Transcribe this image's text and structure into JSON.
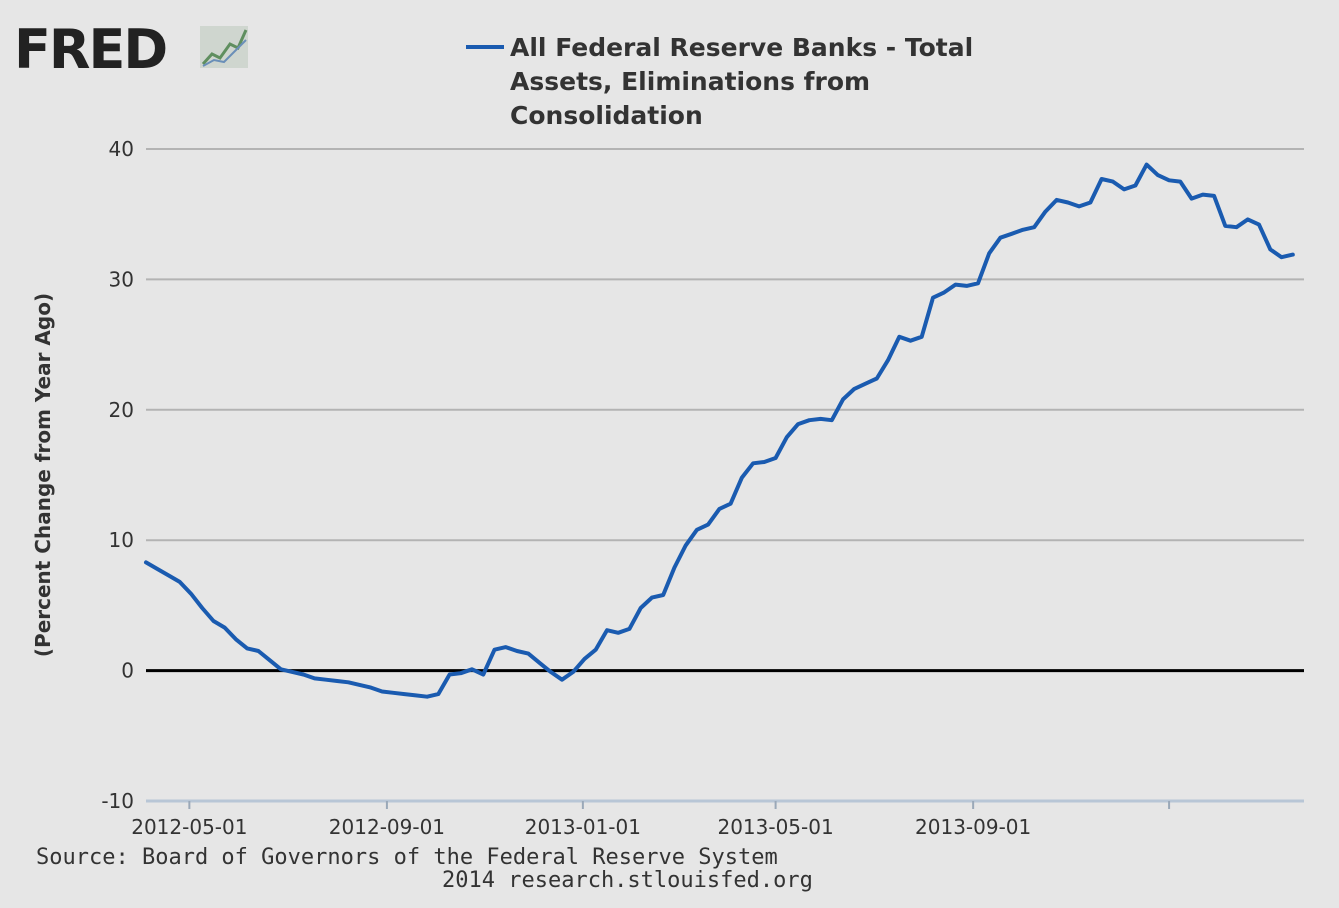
{
  "logo": {
    "text": "FRED"
  },
  "chart_data": {
    "type": "line",
    "series": [
      {
        "name": "All Federal Reserve Banks - Total Assets, Eliminations from Consolidation",
        "legend_lines": [
          "All Federal Reserve Banks - Total",
          "Assets, Eliminations from",
          "Consolidation"
        ],
        "color": "#1a5bb0",
        "start_date": "2012-04-04",
        "interval_days": 7,
        "values": [
          8.3,
          7.8,
          7.3,
          6.8,
          5.9,
          4.8,
          3.8,
          3.3,
          2.4,
          1.7,
          1.5,
          0.8,
          0.1,
          -0.1,
          -0.3,
          -0.6,
          -0.7,
          -0.8,
          -0.9,
          -1.1,
          -1.3,
          -1.6,
          -1.7,
          -1.8,
          -1.9,
          -2.0,
          -1.8,
          -0.3,
          -0.2,
          0.1,
          -0.3,
          1.6,
          1.8,
          1.5,
          1.3,
          0.6,
          -0.1,
          -0.7,
          -0.1,
          0.9,
          1.6,
          3.1,
          2.9,
          3.2,
          4.8,
          5.6,
          5.8,
          7.9,
          9.6,
          10.8,
          11.2,
          12.4,
          12.8,
          14.8,
          15.9,
          16.0,
          16.3,
          17.9,
          18.9,
          19.2,
          19.3,
          19.2,
          20.8,
          21.6,
          22.0,
          22.4,
          23.8,
          25.6,
          25.3,
          25.6,
          28.6,
          29.0,
          29.6,
          29.5,
          29.7,
          32.0,
          33.2,
          33.5,
          33.8,
          34.0,
          35.2,
          36.1,
          35.9,
          35.6,
          35.9,
          37.7,
          37.5,
          36.9,
          37.2,
          38.8,
          38.0,
          37.6,
          37.5,
          36.2,
          36.5,
          36.4,
          34.1,
          34.0,
          34.6,
          34.2,
          32.3,
          31.7,
          31.9
        ]
      }
    ],
    "xlabel": "",
    "ylabel": "(Percent Change from Year Ago)",
    "ylim": [
      -10,
      40
    ],
    "yticks": [
      -10,
      0,
      10,
      20,
      30,
      40
    ],
    "xlim": [
      "2012-04-04",
      "2014-03-26"
    ],
    "xticks": [
      {
        "date": "2012-05-01",
        "label": "2012-05-01"
      },
      {
        "date": "2012-09-01",
        "label": "2012-09-01"
      },
      {
        "date": "2013-01-01",
        "label": "2013-01-01"
      },
      {
        "date": "2013-05-01",
        "label": "2013-05-01"
      },
      {
        "date": "2013-09-01",
        "label": "2013-09-01"
      },
      {
        "date": "2014-01-01",
        "label": ""
      }
    ],
    "zero_line": true,
    "grid": true,
    "legend_position": "top"
  },
  "source": {
    "line1": "Source: Board of Governors of the Federal Reserve System",
    "line2": "2014 research.stlouisfed.org"
  },
  "colors": {
    "background": "#e6e6e6",
    "grid": "#b3b3b3",
    "zero_line": "#000000",
    "series": "#1a5bb0"
  }
}
